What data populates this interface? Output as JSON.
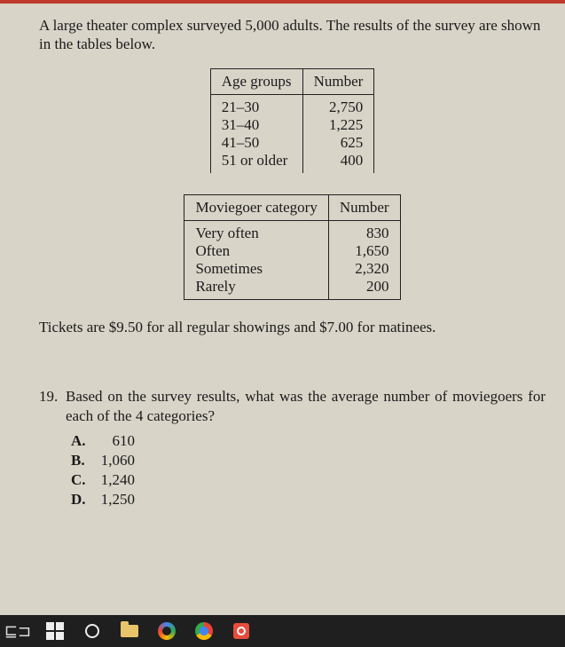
{
  "intro": "A large theater complex surveyed 5,000 adults. The results of the survey are shown in the tables below.",
  "table1": {
    "headers": [
      "Age groups",
      "Number"
    ],
    "rows": [
      [
        "21–30",
        "2,750"
      ],
      [
        "31–40",
        "1,225"
      ],
      [
        "41–50",
        "625"
      ],
      [
        "51 or older",
        "400"
      ]
    ]
  },
  "table2": {
    "headers": [
      "Moviegoer category",
      "Number"
    ],
    "rows": [
      [
        "Very often",
        "830"
      ],
      [
        "Often",
        "1,650"
      ],
      [
        "Sometimes",
        "2,320"
      ],
      [
        "Rarely",
        "200"
      ]
    ]
  },
  "tickets": "Tickets are $9.50 for all regular showings and $7.00 for matinees.",
  "question": {
    "number": "19.",
    "text": "Based on the survey results, what was the average number of moviegoers for each of the 4 categories?",
    "choices": [
      {
        "letter": "A.",
        "value": "610"
      },
      {
        "letter": "B.",
        "value": "1,060"
      },
      {
        "letter": "C.",
        "value": "1,240"
      },
      {
        "letter": "D.",
        "value": "1,250"
      }
    ]
  }
}
